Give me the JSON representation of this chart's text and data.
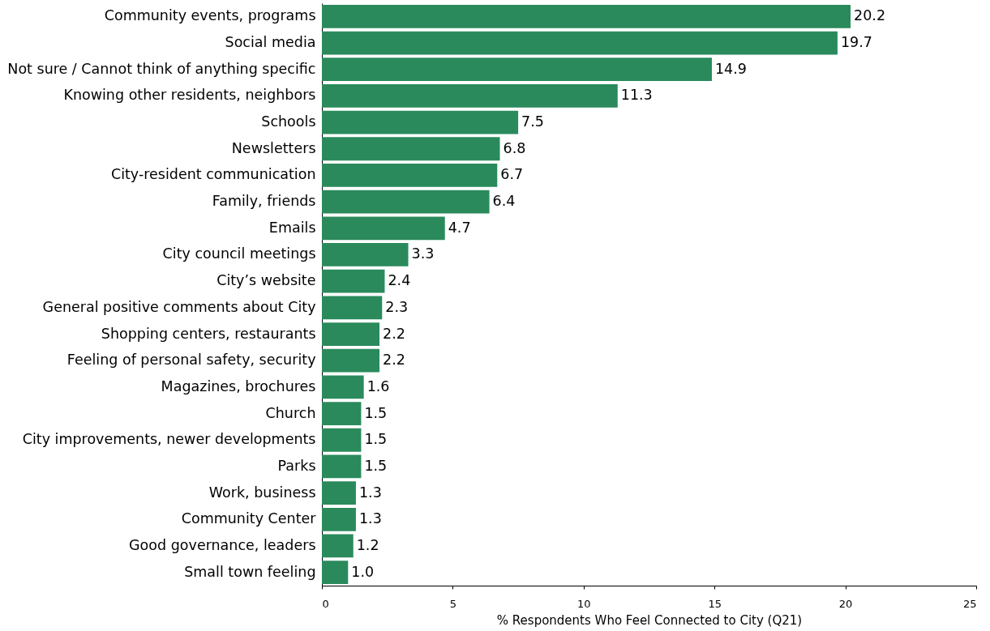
{
  "chart_data": {
    "type": "bar",
    "orientation": "horizontal",
    "xlabel": "% Respondents Who Feel Connected to City (Q21)",
    "categories": [
      "Community events, programs",
      "Social media",
      "Not sure / Cannot think of anything specific",
      "Knowing other residents, neighbors",
      "Schools",
      "Newsletters",
      "City-resident communication",
      "Family, friends",
      "Emails",
      "City council meetings",
      "City’s website",
      "General positive comments about City",
      "Shopping centers, restaurants",
      "Feeling of personal safety, security",
      "Magazines, brochures",
      "Church",
      "City improvements, newer developments",
      "Parks",
      "Work, business",
      "Community Center",
      "Good governance, leaders",
      "Small town feeling"
    ],
    "values": [
      20.2,
      19.7,
      14.9,
      11.3,
      7.5,
      6.8,
      6.7,
      6.4,
      4.7,
      3.3,
      2.4,
      2.3,
      2.2,
      2.2,
      1.6,
      1.5,
      1.5,
      1.5,
      1.3,
      1.3,
      1.2,
      1.0
    ],
    "value_labels": [
      "20.2",
      "19.7",
      "14.9",
      "11.3",
      "7.5",
      "6.8",
      "6.7",
      "6.4",
      "4.7",
      "3.3",
      "2.4",
      "2.3",
      "2.2",
      "2.2",
      "1.6",
      "1.5",
      "1.5",
      "1.5",
      "1.3",
      "1.3",
      "1.2",
      "1.0"
    ],
    "color": "#2a8a5c",
    "xlim": [
      0,
      25
    ],
    "xticks": [
      0,
      5,
      10,
      15,
      20,
      25
    ],
    "grid": false
  }
}
